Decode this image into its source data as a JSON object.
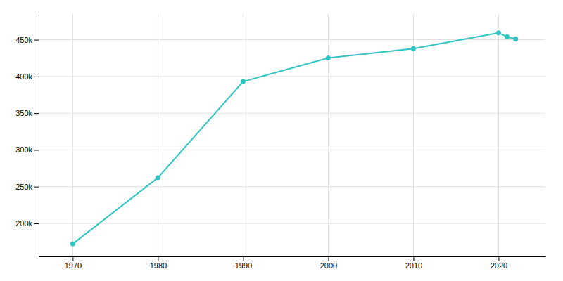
{
  "chart_data": {
    "type": "line",
    "x": [
      1970,
      1980,
      1990,
      2000,
      2010,
      2020,
      2021,
      2022
    ],
    "values": [
      172106,
      262199,
      393069,
      425257,
      437994,
      459470,
      454001,
      450978
    ],
    "color": "#30c5c5",
    "marker": "circle",
    "xlim": [
      1966,
      2025.5
    ],
    "ylim": [
      155000,
      485000
    ],
    "xticks": [
      1970,
      1980,
      1990,
      2000,
      2010,
      2020
    ],
    "yticks": [
      {
        "value": 200000,
        "label": "200k"
      },
      {
        "value": 250000,
        "label": "250k"
      },
      {
        "value": 300000,
        "label": "300k"
      },
      {
        "value": 350000,
        "label": "350k"
      },
      {
        "value": 400000,
        "label": "400k"
      },
      {
        "value": 450000,
        "label": "450k"
      }
    ],
    "grid": true
  }
}
